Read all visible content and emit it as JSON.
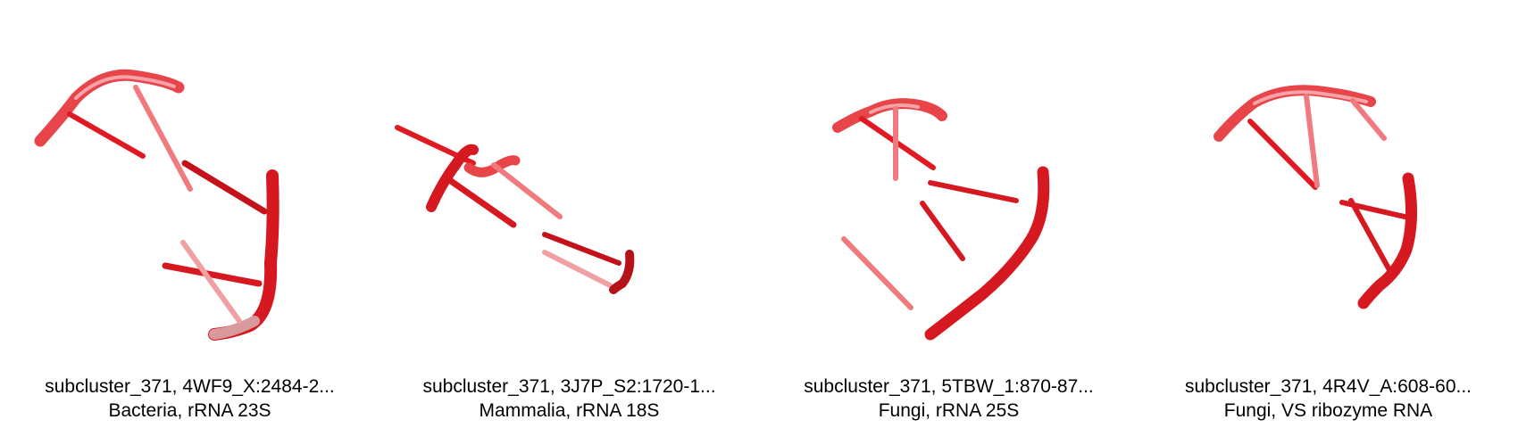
{
  "colors": {
    "strand": "#e8242b",
    "strand_dark": "#b5121a",
    "strand_light": "#f07a7e",
    "text": "#000000",
    "background": "#ffffff"
  },
  "panels": [
    {
      "title": "subcluster_371, 4WF9_X:2484-2...",
      "subtitle": "Bacteria, rRNA 23S"
    },
    {
      "title": "subcluster_371, 3J7P_S2:1720-1...",
      "subtitle": "Mammalia, rRNA 18S"
    },
    {
      "title": "subcluster_371, 5TBW_1:870-87...",
      "subtitle": "Fungi, rRNA 25S"
    },
    {
      "title": "subcluster_371, 4R4V_A:608-60...",
      "subtitle": "Fungi, VS ribozyme RNA"
    }
  ]
}
